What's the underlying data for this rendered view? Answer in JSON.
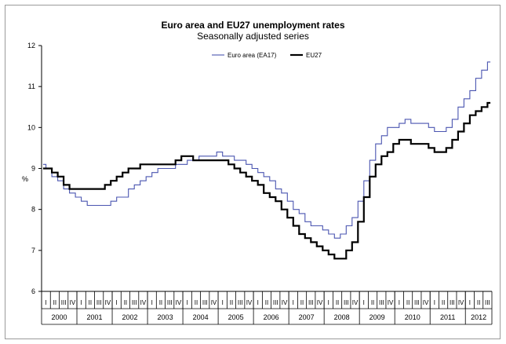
{
  "chart_data": {
    "type": "line",
    "title": "Euro area and EU27 unemployment rates",
    "subtitle": "Seasonally adjusted series",
    "ylabel": "%",
    "xlabel": "",
    "ylim": [
      6,
      12
    ],
    "yticks": [
      "6",
      "7",
      "8",
      "9",
      "10",
      "11",
      "12"
    ],
    "grid": false,
    "legend_position": "top-right",
    "years": [
      "2000",
      "2001",
      "2002",
      "2003",
      "2004",
      "2005",
      "2006",
      "2007",
      "2008",
      "2009",
      "2010",
      "2011",
      "2012"
    ],
    "quarters": [
      "I",
      "II",
      "III",
      "IV"
    ],
    "last_year_quarters": [
      "I",
      "II",
      "III"
    ],
    "x_unit": "month index from Jan 2000 (0 = Jan 2000)",
    "series": [
      {
        "name": "Euro area (EA17)",
        "color": "#4a55b0",
        "points": [
          [
            0,
            9.1
          ],
          [
            2,
            9.0
          ],
          [
            4,
            8.8
          ],
          [
            6,
            8.7
          ],
          [
            8,
            8.5
          ],
          [
            10,
            8.4
          ],
          [
            12,
            8.3
          ],
          [
            14,
            8.2
          ],
          [
            16,
            8.1
          ],
          [
            18,
            8.1
          ],
          [
            20,
            8.1
          ],
          [
            22,
            8.1
          ],
          [
            24,
            8.2
          ],
          [
            26,
            8.3
          ],
          [
            28,
            8.3
          ],
          [
            30,
            8.5
          ],
          [
            32,
            8.6
          ],
          [
            34,
            8.7
          ],
          [
            36,
            8.8
          ],
          [
            38,
            8.9
          ],
          [
            40,
            9.0
          ],
          [
            42,
            9.0
          ],
          [
            44,
            9.0
          ],
          [
            46,
            9.1
          ],
          [
            48,
            9.1
          ],
          [
            50,
            9.2
          ],
          [
            52,
            9.2
          ],
          [
            54,
            9.3
          ],
          [
            56,
            9.3
          ],
          [
            58,
            9.3
          ],
          [
            60,
            9.4
          ],
          [
            62,
            9.3
          ],
          [
            64,
            9.3
          ],
          [
            66,
            9.2
          ],
          [
            68,
            9.2
          ],
          [
            70,
            9.1
          ],
          [
            72,
            9.0
          ],
          [
            74,
            8.9
          ],
          [
            76,
            8.8
          ],
          [
            78,
            8.7
          ],
          [
            80,
            8.5
          ],
          [
            82,
            8.4
          ],
          [
            84,
            8.2
          ],
          [
            86,
            8.0
          ],
          [
            88,
            7.9
          ],
          [
            90,
            7.7
          ],
          [
            92,
            7.6
          ],
          [
            94,
            7.6
          ],
          [
            96,
            7.5
          ],
          [
            98,
            7.4
          ],
          [
            100,
            7.3
          ],
          [
            102,
            7.4
          ],
          [
            104,
            7.6
          ],
          [
            106,
            7.8
          ],
          [
            108,
            8.2
          ],
          [
            110,
            8.7
          ],
          [
            112,
            9.2
          ],
          [
            114,
            9.6
          ],
          [
            116,
            9.8
          ],
          [
            118,
            10.0
          ],
          [
            120,
            10.0
          ],
          [
            122,
            10.1
          ],
          [
            124,
            10.2
          ],
          [
            126,
            10.1
          ],
          [
            128,
            10.1
          ],
          [
            130,
            10.1
          ],
          [
            132,
            10.0
          ],
          [
            134,
            9.9
          ],
          [
            136,
            9.9
          ],
          [
            138,
            10.0
          ],
          [
            140,
            10.2
          ],
          [
            142,
            10.5
          ],
          [
            144,
            10.7
          ],
          [
            146,
            10.9
          ],
          [
            148,
            11.2
          ],
          [
            150,
            11.4
          ],
          [
            152,
            11.6
          ]
        ]
      },
      {
        "name": "EU27",
        "color": "#000000",
        "points": [
          [
            0,
            9.0
          ],
          [
            2,
            9.0
          ],
          [
            4,
            8.9
          ],
          [
            6,
            8.8
          ],
          [
            8,
            8.6
          ],
          [
            10,
            8.5
          ],
          [
            12,
            8.5
          ],
          [
            14,
            8.5
          ],
          [
            16,
            8.5
          ],
          [
            18,
            8.5
          ],
          [
            20,
            8.5
          ],
          [
            22,
            8.6
          ],
          [
            24,
            8.7
          ],
          [
            26,
            8.8
          ],
          [
            28,
            8.9
          ],
          [
            30,
            9.0
          ],
          [
            32,
            9.0
          ],
          [
            34,
            9.1
          ],
          [
            36,
            9.1
          ],
          [
            38,
            9.1
          ],
          [
            40,
            9.1
          ],
          [
            42,
            9.1
          ],
          [
            44,
            9.1
          ],
          [
            46,
            9.2
          ],
          [
            48,
            9.3
          ],
          [
            50,
            9.3
          ],
          [
            52,
            9.2
          ],
          [
            54,
            9.2
          ],
          [
            56,
            9.2
          ],
          [
            58,
            9.2
          ],
          [
            60,
            9.2
          ],
          [
            62,
            9.2
          ],
          [
            64,
            9.1
          ],
          [
            66,
            9.0
          ],
          [
            68,
            8.9
          ],
          [
            70,
            8.8
          ],
          [
            72,
            8.7
          ],
          [
            74,
            8.6
          ],
          [
            76,
            8.4
          ],
          [
            78,
            8.3
          ],
          [
            80,
            8.2
          ],
          [
            82,
            8.0
          ],
          [
            84,
            7.8
          ],
          [
            86,
            7.6
          ],
          [
            88,
            7.4
          ],
          [
            90,
            7.3
          ],
          [
            92,
            7.2
          ],
          [
            94,
            7.1
          ],
          [
            96,
            7.0
          ],
          [
            98,
            6.9
          ],
          [
            100,
            6.8
          ],
          [
            102,
            6.8
          ],
          [
            104,
            7.0
          ],
          [
            106,
            7.2
          ],
          [
            108,
            7.7
          ],
          [
            110,
            8.3
          ],
          [
            112,
            8.8
          ],
          [
            114,
            9.1
          ],
          [
            116,
            9.3
          ],
          [
            118,
            9.4
          ],
          [
            120,
            9.6
          ],
          [
            122,
            9.7
          ],
          [
            124,
            9.7
          ],
          [
            126,
            9.6
          ],
          [
            128,
            9.6
          ],
          [
            130,
            9.6
          ],
          [
            132,
            9.5
          ],
          [
            134,
            9.4
          ],
          [
            136,
            9.4
          ],
          [
            138,
            9.5
          ],
          [
            140,
            9.7
          ],
          [
            142,
            9.9
          ],
          [
            144,
            10.1
          ],
          [
            146,
            10.3
          ],
          [
            148,
            10.4
          ],
          [
            150,
            10.5
          ],
          [
            152,
            10.6
          ]
        ]
      }
    ]
  }
}
